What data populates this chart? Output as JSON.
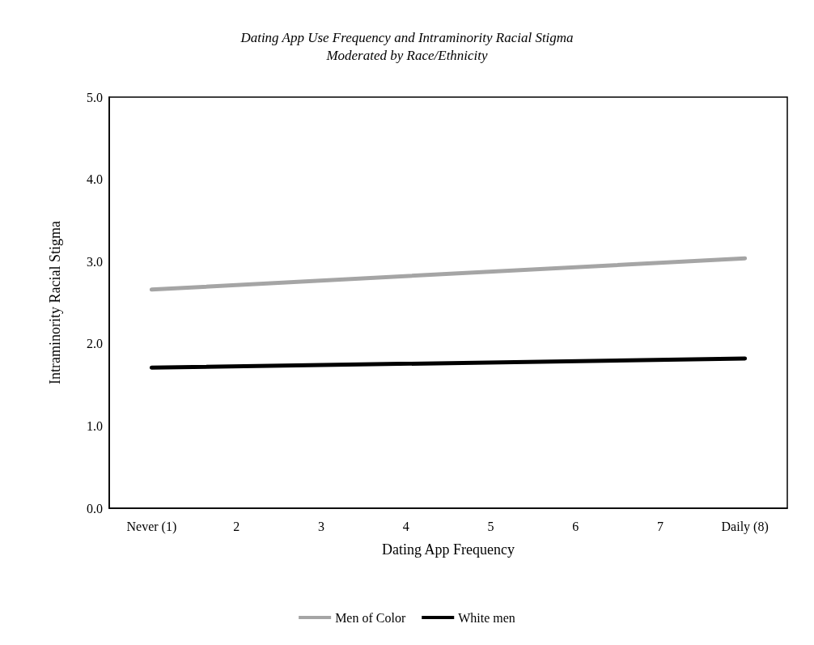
{
  "chart_data": {
    "type": "line",
    "title": "Dating App Use Frequency and Intraminority Racial Stigma\nModerated by Race/Ethnicity",
    "xlabel": "Dating App Frequency",
    "ylabel": "Intraminority Racial Stigma",
    "categories": [
      "Never (1)",
      "2",
      "3",
      "4",
      "5",
      "6",
      "7",
      "Daily (8)"
    ],
    "series": [
      {
        "name": "Men of Color",
        "color": "#a5a5a5",
        "values": [
          2.66,
          null,
          null,
          null,
          null,
          null,
          null,
          3.04
        ]
      },
      {
        "name": "White men",
        "color": "#000000",
        "values": [
          1.71,
          null,
          null,
          null,
          null,
          null,
          null,
          1.82
        ]
      }
    ],
    "ylim": [
      0,
      5
    ],
    "yticks": [
      {
        "value": 0,
        "label": "0.0"
      },
      {
        "value": 1,
        "label": "1.0"
      },
      {
        "value": 2,
        "label": "2.0"
      },
      {
        "value": 3,
        "label": "3.0"
      },
      {
        "value": 4,
        "label": "4.0"
      },
      {
        "value": 5,
        "label": "5.0"
      }
    ],
    "grid": false,
    "legend": "bottom",
    "marker": "none",
    "line_style": "solid"
  }
}
